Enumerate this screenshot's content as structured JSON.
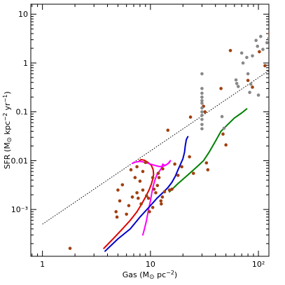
{
  "chart_data": {
    "type": "scatter",
    "title": "",
    "xlabel": "Gas (M⊙ pc⁻²)",
    "ylabel": "SFR (M⊙ kpc⁻² yr⁻¹)",
    "x_scale": "log",
    "y_scale": "log",
    "xlim": [
      0.78,
      125
    ],
    "ylim": [
      0.00011,
      16
    ],
    "x_ticks": [
      1,
      10,
      100
    ],
    "x_tick_labels": [
      "1",
      "10",
      "10²"
    ],
    "y_ticks": [
      0.001,
      0.01,
      0.1,
      1,
      10
    ],
    "y_tick_labels": [
      "10⁻³",
      "0.01",
      "0.1",
      "1",
      "10"
    ],
    "grid": false,
    "reference_line": {
      "style": "dotted",
      "color": "#000000",
      "x": [
        1,
        125
      ],
      "y": [
        0.0005,
        0.7
      ]
    },
    "series": [
      {
        "kind": "points",
        "color": "#a0400f",
        "points": [
          [
            1.8,
            0.00016
          ],
          [
            5.0,
            0.0025
          ],
          [
            5.5,
            0.0032
          ],
          [
            5.2,
            0.0015
          ],
          [
            4.8,
            0.0009
          ],
          [
            4.9,
            0.0007
          ],
          [
            6.0,
            0.0008
          ],
          [
            6.3,
            0.0012
          ],
          [
            6.8,
            0.0018
          ],
          [
            7.2,
            0.0045
          ],
          [
            6.6,
            0.0065
          ],
          [
            7.5,
            0.0022
          ],
          [
            7.7,
            0.0017
          ],
          [
            7.5,
            0.0075
          ],
          [
            8.0,
            0.0038
          ],
          [
            8.2,
            0.0013
          ],
          [
            8.5,
            0.0025
          ],
          [
            8.5,
            0.006
          ],
          [
            9.0,
            0.0092
          ],
          [
            9.2,
            0.0019
          ],
          [
            9.6,
            0.0017
          ],
          [
            9.8,
            0.0009
          ],
          [
            10.5,
            0.0045
          ],
          [
            10.5,
            0.0011
          ],
          [
            10.8,
            0.0026
          ],
          [
            11.2,
            0.0022
          ],
          [
            11.6,
            0.0031
          ],
          [
            11.8,
            0.0055
          ],
          [
            12.0,
            0.0045
          ],
          [
            12.5,
            0.0015
          ],
          [
            12.6,
            0.0013
          ],
          [
            12.9,
            0.0018
          ],
          [
            13.5,
            0.0023
          ],
          [
            13.0,
            0.0068
          ],
          [
            14.5,
            0.042
          ],
          [
            15.0,
            0.0025
          ],
          [
            15.8,
            0.0026
          ],
          [
            16.8,
            0.0085
          ],
          [
            18.0,
            0.005
          ],
          [
            19.5,
            0.0075
          ],
          [
            23.0,
            0.012
          ],
          [
            23.5,
            0.078
          ],
          [
            25.0,
            0.0055
          ],
          [
            31.0,
            0.13
          ],
          [
            32.0,
            0.1
          ],
          [
            33.0,
            0.009
          ],
          [
            34.0,
            0.0065
          ],
          [
            45.0,
            0.3
          ],
          [
            47.0,
            0.035
          ],
          [
            50.0,
            0.021
          ],
          [
            55.0,
            1.8
          ],
          [
            80.0,
            0.44
          ],
          [
            88.0,
            0.32
          ],
          [
            102.0,
            1.7
          ],
          [
            115.0,
            0.88
          ],
          [
            128.0,
            4.0
          ]
        ]
      },
      {
        "kind": "points",
        "color": "#888888",
        "points": [
          [
            30,
            0.6
          ],
          [
            30,
            0.3
          ],
          [
            30,
            0.24
          ],
          [
            30,
            0.2
          ],
          [
            30,
            0.17
          ],
          [
            30,
            0.15
          ],
          [
            30,
            0.12
          ],
          [
            30,
            0.1
          ],
          [
            30,
            0.085
          ],
          [
            30,
            0.07
          ],
          [
            30,
            0.055
          ],
          [
            30,
            0.045
          ],
          [
            46,
            0.08
          ],
          [
            48,
            0.046
          ],
          [
            62,
            0.45
          ],
          [
            63,
            0.38
          ],
          [
            65,
            0.33
          ],
          [
            70,
            1.6
          ],
          [
            72,
            1.0
          ],
          [
            78,
            1.3
          ],
          [
            80,
            0.6
          ],
          [
            83,
            0.25
          ],
          [
            85,
            0.37
          ],
          [
            88,
            1.4
          ],
          [
            95,
            2.9
          ],
          [
            98,
            2.2
          ],
          [
            100,
            0.22
          ],
          [
            105,
            3.5
          ],
          [
            110,
            1.9
          ],
          [
            120,
            2.6
          ],
          [
            125,
            3.2
          ]
        ]
      },
      {
        "kind": "line",
        "color": "#e00000",
        "points": [
          [
            3.7,
            0.00016
          ],
          [
            4.5,
            0.00025
          ],
          [
            5.5,
            0.0004
          ],
          [
            6.5,
            0.0006
          ],
          [
            7.5,
            0.0009
          ],
          [
            8.3,
            0.0013
          ],
          [
            9.0,
            0.0018
          ],
          [
            9.7,
            0.0025
          ],
          [
            10.2,
            0.0033
          ],
          [
            10.5,
            0.0042
          ],
          [
            10.7,
            0.0052
          ],
          [
            10.6,
            0.0065
          ],
          [
            10.2,
            0.008
          ],
          [
            9.5,
            0.0092
          ],
          [
            8.8,
            0.0102
          ],
          [
            8.2,
            0.0105
          ],
          [
            7.9,
            0.01
          ]
        ]
      },
      {
        "kind": "line",
        "color": "#ff00ff",
        "points": [
          [
            8.5,
            0.0003
          ],
          [
            8.8,
            0.0004
          ],
          [
            9.2,
            0.0006
          ],
          [
            9.6,
            0.001
          ],
          [
            10.0,
            0.0015
          ],
          [
            10.3,
            0.0022
          ],
          [
            10.6,
            0.003
          ],
          [
            11.0,
            0.004
          ],
          [
            11.5,
            0.0052
          ],
          [
            12.2,
            0.0062
          ],
          [
            12.7,
            0.0072
          ],
          [
            13.0,
            0.0085
          ],
          [
            13.5,
            0.008
          ],
          [
            14.5,
            0.0086
          ],
          [
            15.3,
            0.01
          ],
          [
            15.0,
            0.0092
          ],
          [
            14.0,
            0.0082
          ],
          [
            13.0,
            0.0076
          ],
          [
            12.0,
            0.0076
          ],
          [
            11.0,
            0.008
          ],
          [
            10.0,
            0.0085
          ],
          [
            9.0,
            0.0092
          ],
          [
            8.0,
            0.0097
          ],
          [
            7.2,
            0.0093
          ],
          [
            6.8,
            0.0088
          ]
        ]
      },
      {
        "kind": "line",
        "color": "#0000cc",
        "points": [
          [
            3.8,
            0.00014
          ],
          [
            5.0,
            0.00025
          ],
          [
            6.5,
            0.0004
          ],
          [
            8.0,
            0.0007
          ],
          [
            10.0,
            0.0012
          ],
          [
            11.5,
            0.0017
          ],
          [
            13.0,
            0.0022
          ],
          [
            14.5,
            0.0028
          ],
          [
            15.8,
            0.0036
          ],
          [
            17.0,
            0.0048
          ],
          [
            18.0,
            0.0065
          ],
          [
            19.0,
            0.0085
          ],
          [
            20.0,
            0.011
          ],
          [
            20.7,
            0.015
          ],
          [
            21.0,
            0.02
          ],
          [
            21.5,
            0.027
          ],
          [
            22.2,
            0.031
          ]
        ]
      },
      {
        "kind": "line",
        "color": "#008000",
        "points": [
          [
            15.0,
            0.0023
          ],
          [
            18.0,
            0.0034
          ],
          [
            22.0,
            0.005
          ],
          [
            27.0,
            0.0075
          ],
          [
            31.0,
            0.01
          ],
          [
            35.0,
            0.015
          ],
          [
            40.0,
            0.025
          ],
          [
            45.0,
            0.04
          ],
          [
            52.0,
            0.055
          ],
          [
            60.0,
            0.075
          ],
          [
            70.0,
            0.095
          ],
          [
            78.0,
            0.115
          ]
        ]
      }
    ]
  }
}
